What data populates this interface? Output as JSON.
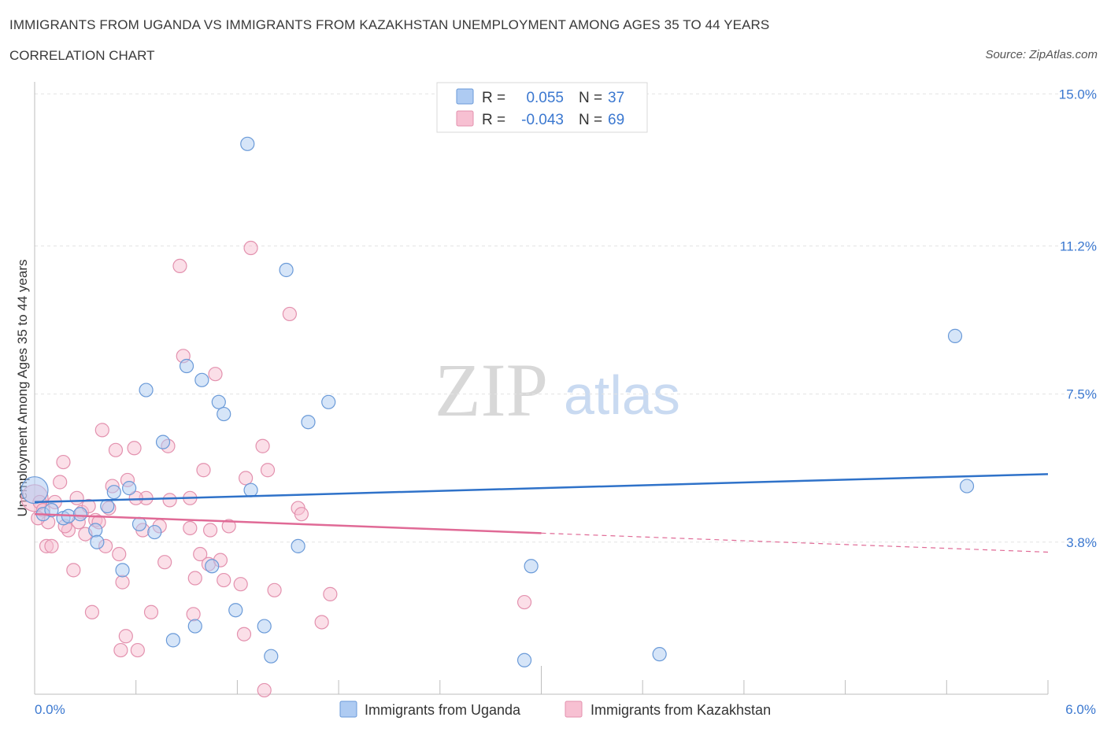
{
  "title": "IMMIGRANTS FROM UGANDA VS IMMIGRANTS FROM KAZAKHSTAN UNEMPLOYMENT AMONG AGES 35 TO 44 YEARS",
  "subtitle": "CORRELATION CHART",
  "source": "Source: ZipAtlas.com",
  "watermark": {
    "zip": "ZIP",
    "atlas": "atlas"
  },
  "colors": {
    "uganda_fill": "#aecbf2",
    "uganda_stroke": "#6a9ad8",
    "uganda_line": "#2f72c9",
    "kazakhstan_fill": "#f7c0d2",
    "kazakhstan_stroke": "#e391ae",
    "kazakhstan_line": "#e06a96",
    "axis_text": "#3b78d0"
  },
  "legend": {
    "rows": [
      {
        "r_label": "R =",
        "r_value": "0.055",
        "n_label": "N =",
        "n_value": "37"
      },
      {
        "r_label": "R =",
        "r_value": "-0.043",
        "n_label": "N =",
        "n_value": "69"
      }
    ]
  },
  "chart_data": {
    "type": "scatter",
    "title": "IMMIGRANTS FROM UGANDA VS IMMIGRANTS FROM KAZAKHSTAN UNEMPLOYMENT AMONG AGES 35 TO 44 YEARS",
    "xlabel": "",
    "ylabel": "Unemployment Among Ages 35 to 44 years",
    "xlim": [
      0,
      6
    ],
    "ylim": [
      0,
      15.3
    ],
    "x_tick_labels": [
      "0.0%",
      "6.0%"
    ],
    "y_ticks": [
      3.8,
      7.5,
      11.2,
      15.0
    ],
    "y_tick_labels": [
      "3.8%",
      "7.5%",
      "11.2%",
      "15.0%"
    ],
    "grid": true,
    "legend_position": "top-center",
    "series": [
      {
        "name": "Immigrants from Uganda",
        "R": 0.055,
        "N": 37,
        "trend": {
          "x": [
            0,
            6
          ],
          "y": [
            4.8,
            5.5
          ],
          "dashed_from": null
        },
        "points": [
          {
            "x": 0.0,
            "y": 5.1,
            "big": true
          },
          {
            "x": 0.05,
            "y": 4.5
          },
          {
            "x": 0.1,
            "y": 4.6
          },
          {
            "x": 0.17,
            "y": 4.4
          },
          {
            "x": 0.2,
            "y": 4.45
          },
          {
            "x": 0.27,
            "y": 4.5
          },
          {
            "x": 0.36,
            "y": 4.1
          },
          {
            "x": 0.37,
            "y": 3.8
          },
          {
            "x": 0.43,
            "y": 4.7
          },
          {
            "x": 0.47,
            "y": 5.05
          },
          {
            "x": 0.52,
            "y": 3.1
          },
          {
            "x": 0.56,
            "y": 5.15
          },
          {
            "x": 0.62,
            "y": 4.25
          },
          {
            "x": 0.66,
            "y": 7.6
          },
          {
            "x": 0.71,
            "y": 4.05
          },
          {
            "x": 0.76,
            "y": 6.3
          },
          {
            "x": 0.82,
            "y": 1.35
          },
          {
            "x": 0.9,
            "y": 8.2
          },
          {
            "x": 0.95,
            "y": 1.7
          },
          {
            "x": 0.99,
            "y": 7.85
          },
          {
            "x": 1.05,
            "y": 3.2
          },
          {
            "x": 1.09,
            "y": 7.3
          },
          {
            "x": 1.12,
            "y": 7.0
          },
          {
            "x": 1.19,
            "y": 2.1
          },
          {
            "x": 1.26,
            "y": 13.75
          },
          {
            "x": 1.28,
            "y": 5.1
          },
          {
            "x": 1.36,
            "y": 1.7
          },
          {
            "x": 1.4,
            "y": 0.95
          },
          {
            "x": 1.49,
            "y": 10.6
          },
          {
            "x": 1.56,
            "y": 3.7
          },
          {
            "x": 1.62,
            "y": 6.8
          },
          {
            "x": 1.74,
            "y": 7.3
          },
          {
            "x": 2.9,
            "y": 0.85
          },
          {
            "x": 2.94,
            "y": 3.2
          },
          {
            "x": 3.7,
            "y": 1.0
          },
          {
            "x": 5.45,
            "y": 8.95
          },
          {
            "x": 5.52,
            "y": 5.2
          }
        ]
      },
      {
        "name": "Immigrants from Kazakhstan",
        "R": -0.043,
        "N": 69,
        "trend": {
          "x": [
            0,
            6
          ],
          "y": [
            4.5,
            3.55
          ],
          "dashed_from": 3.0
        },
        "points": [
          {
            "x": 0.0,
            "y": 4.9,
            "big": true
          },
          {
            "x": 0.03,
            "y": 4.8
          },
          {
            "x": 0.05,
            "y": 4.6
          },
          {
            "x": 0.07,
            "y": 3.7
          },
          {
            "x": 0.08,
            "y": 4.3
          },
          {
            "x": 0.1,
            "y": 3.7
          },
          {
            "x": 0.12,
            "y": 4.8
          },
          {
            "x": 0.15,
            "y": 5.3
          },
          {
            "x": 0.17,
            "y": 5.8
          },
          {
            "x": 0.2,
            "y": 4.1
          },
          {
            "x": 0.23,
            "y": 3.1
          },
          {
            "x": 0.25,
            "y": 4.9
          },
          {
            "x": 0.28,
            "y": 4.55
          },
          {
            "x": 0.3,
            "y": 4.0
          },
          {
            "x": 0.32,
            "y": 4.7
          },
          {
            "x": 0.34,
            "y": 2.05
          },
          {
            "x": 0.36,
            "y": 4.35
          },
          {
            "x": 0.38,
            "y": 4.3
          },
          {
            "x": 0.4,
            "y": 6.6
          },
          {
            "x": 0.42,
            "y": 3.7
          },
          {
            "x": 0.44,
            "y": 4.65
          },
          {
            "x": 0.46,
            "y": 5.2
          },
          {
            "x": 0.48,
            "y": 6.1
          },
          {
            "x": 0.5,
            "y": 3.5
          },
          {
            "x": 0.51,
            "y": 1.1
          },
          {
            "x": 0.52,
            "y": 2.8
          },
          {
            "x": 0.54,
            "y": 1.45
          },
          {
            "x": 0.55,
            "y": 5.35
          },
          {
            "x": 0.59,
            "y": 6.15
          },
          {
            "x": 0.61,
            "y": 1.1
          },
          {
            "x": 0.64,
            "y": 4.1
          },
          {
            "x": 0.66,
            "y": 4.9
          },
          {
            "x": 0.69,
            "y": 2.05
          },
          {
            "x": 0.74,
            "y": 4.2
          },
          {
            "x": 0.77,
            "y": 3.3
          },
          {
            "x": 0.79,
            "y": 6.2
          },
          {
            "x": 0.8,
            "y": 4.85
          },
          {
            "x": 0.86,
            "y": 10.7
          },
          {
            "x": 0.88,
            "y": 8.45
          },
          {
            "x": 0.92,
            "y": 4.9
          },
          {
            "x": 0.94,
            "y": 2.0
          },
          {
            "x": 0.95,
            "y": 2.9
          },
          {
            "x": 0.98,
            "y": 3.5
          },
          {
            "x": 1.0,
            "y": 5.6
          },
          {
            "x": 1.03,
            "y": 3.25
          },
          {
            "x": 1.04,
            "y": 4.1
          },
          {
            "x": 1.07,
            "y": 8.0
          },
          {
            "x": 1.12,
            "y": 2.85
          },
          {
            "x": 1.15,
            "y": 4.2
          },
          {
            "x": 1.22,
            "y": 2.75
          },
          {
            "x": 1.24,
            "y": 1.5
          },
          {
            "x": 1.25,
            "y": 5.4
          },
          {
            "x": 1.28,
            "y": 11.15
          },
          {
            "x": 1.35,
            "y": 6.2
          },
          {
            "x": 1.36,
            "y": 0.1
          },
          {
            "x": 1.38,
            "y": 5.6
          },
          {
            "x": 1.42,
            "y": 2.6
          },
          {
            "x": 1.51,
            "y": 9.5
          },
          {
            "x": 1.56,
            "y": 4.65
          },
          {
            "x": 1.58,
            "y": 4.5
          },
          {
            "x": 1.7,
            "y": 1.8
          },
          {
            "x": 1.75,
            "y": 2.5
          },
          {
            "x": 2.9,
            "y": 2.3
          },
          {
            "x": 0.02,
            "y": 4.4
          },
          {
            "x": 0.18,
            "y": 4.2
          },
          {
            "x": 0.6,
            "y": 4.9
          },
          {
            "x": 0.92,
            "y": 4.15
          },
          {
            "x": 1.1,
            "y": 3.35
          },
          {
            "x": 0.26,
            "y": 4.3
          }
        ]
      }
    ]
  },
  "bottom_legend": {
    "items": [
      {
        "label": "Immigrants from Uganda"
      },
      {
        "label": "Immigrants from Kazakhstan"
      }
    ]
  }
}
